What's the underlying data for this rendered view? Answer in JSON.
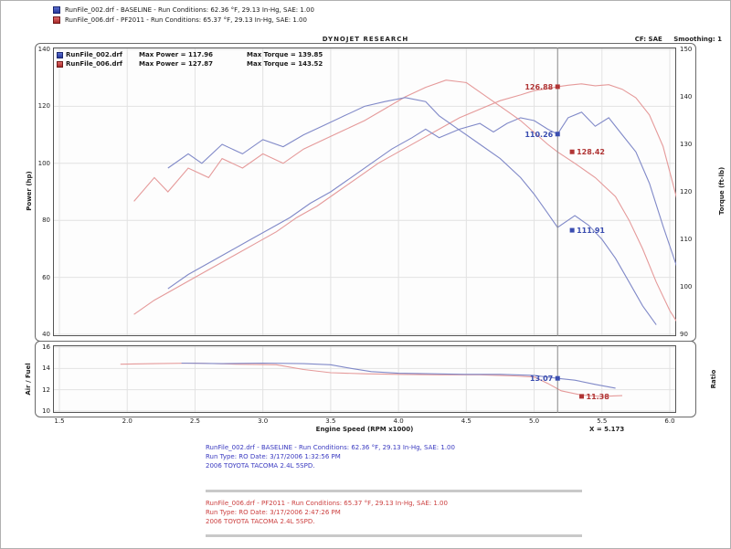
{
  "top_legend": [
    {
      "name": "baseline",
      "label": "RunFile_002.drf - BASELINE - Run Conditions: 62.36 °F, 29.13 In-Hg, SAE: 1.00"
    },
    {
      "name": "pf2011",
      "label": "RunFile_006.drf - PF2011 - Run Conditions: 65.37 °F, 29.13 In-Hg, SAE: 1.00"
    }
  ],
  "header": {
    "title": "DYNOJET RESEARCH",
    "correction": "CF: SAE",
    "smoothing": "Smoothing: 1"
  },
  "chart_legend": [
    {
      "file": "RunFile_002.drf",
      "max_power": "Max Power = 117.96",
      "max_torque": "Max Torque = 139.85"
    },
    {
      "file": "RunFile_006.drf",
      "max_power": "Max Power = 127.87",
      "max_torque": "Max Torque = 143.52"
    }
  ],
  "axis_titles": {
    "power": "Power (hp)",
    "torque": "Torque (ft-lb)",
    "airfuel": "Air / Fuel",
    "ratio": "Ratio",
    "x": "Engine Speed (RPM x1000)"
  },
  "cursor": {
    "readout": "X = 5.173"
  },
  "footer": {
    "runs": [
      {
        "lines": [
          "RunFile_002.drf - BASELINE - Run Conditions: 62.36 °F, 29.13 In-Hg, SAE: 1.00",
          "Run Type: RO  Date: 3/17/2006 1:32:56 PM",
          "2006 TOYOTA TACOMA 2.4L 5SPD."
        ]
      },
      {
        "lines": [
          "RunFile_006.drf - PF2011 - Run Conditions: 65.37 °F, 29.13 In-Hg, SAE: 1.00",
          "Run Type: RO  Date: 3/17/2006 2:47:26 PM",
          "2006 TOYOTA TACOMA 2.4L 5SPD."
        ]
      }
    ]
  },
  "colors": {
    "baseline_line": "#8089c8",
    "pf2011_line": "#e59a9a",
    "baseline_label": "#3a4db0",
    "pf2011_label": "#b03535",
    "grid": "#e2e2e2",
    "cursor_line": "#8a8a8a"
  },
  "chart_data": [
    {
      "id": "main",
      "type": "line",
      "title": "Power and Torque vs Engine Speed",
      "x": {
        "label": "Engine Speed (RPM x1000)",
        "min": 1.5,
        "max": 6.0,
        "ticks": [
          "1.5",
          "2.0",
          "2.5",
          "3.0",
          "3.5",
          "4.0",
          "4.5",
          "5.0",
          "5.5",
          "6.0"
        ]
      },
      "y_left": {
        "label": "Power (hp)",
        "min": 40,
        "max": 140,
        "ticks": [
          "140",
          "120",
          "100",
          "80",
          "60",
          "40"
        ]
      },
      "y_right": {
        "label": "Torque (ft-lb)",
        "min": 90,
        "max": 150,
        "ticks": [
          "150",
          "140",
          "130",
          "120",
          "110",
          "100",
          "90"
        ]
      },
      "grid_color": "#e2e2e2",
      "cursor_x": 5.173,
      "series": [
        {
          "name": "pf2011-power",
          "axis": "left",
          "color": "#e59a9a",
          "points": [
            [
              2.05,
              47
            ],
            [
              2.2,
              52
            ],
            [
              2.35,
              56
            ],
            [
              2.5,
              60
            ],
            [
              2.65,
              64
            ],
            [
              2.8,
              68
            ],
            [
              2.95,
              72
            ],
            [
              3.1,
              76
            ],
            [
              3.25,
              81
            ],
            [
              3.4,
              85
            ],
            [
              3.55,
              90
            ],
            [
              3.7,
              95
            ],
            [
              3.85,
              100
            ],
            [
              4.0,
              104
            ],
            [
              4.15,
              108
            ],
            [
              4.3,
              112
            ],
            [
              4.45,
              116
            ],
            [
              4.6,
              119
            ],
            [
              4.75,
              122
            ],
            [
              4.9,
              124
            ],
            [
              5.0,
              125.5
            ],
            [
              5.1,
              126.2
            ],
            [
              5.173,
              126.88
            ],
            [
              5.25,
              127.4
            ],
            [
              5.35,
              127.87
            ],
            [
              5.45,
              127.2
            ],
            [
              5.55,
              127.6
            ],
            [
              5.65,
              126
            ],
            [
              5.75,
              123
            ],
            [
              5.85,
              117
            ],
            [
              5.95,
              106
            ],
            [
              6.05,
              88
            ],
            [
              6.15,
              65
            ]
          ]
        },
        {
          "name": "baseline-power",
          "axis": "left",
          "color": "#8089c8",
          "points": [
            [
              2.3,
              56
            ],
            [
              2.45,
              61
            ],
            [
              2.6,
              65
            ],
            [
              2.75,
              69
            ],
            [
              2.9,
              73
            ],
            [
              3.05,
              77
            ],
            [
              3.2,
              81
            ],
            [
              3.35,
              86
            ],
            [
              3.5,
              90
            ],
            [
              3.65,
              95
            ],
            [
              3.8,
              100
            ],
            [
              3.95,
              105
            ],
            [
              4.1,
              109
            ],
            [
              4.2,
              112
            ],
            [
              4.3,
              109
            ],
            [
              4.45,
              112
            ],
            [
              4.6,
              114
            ],
            [
              4.7,
              111
            ],
            [
              4.8,
              114
            ],
            [
              4.9,
              116
            ],
            [
              5.0,
              115
            ],
            [
              5.1,
              112
            ],
            [
              5.173,
              110.26
            ],
            [
              5.25,
              116
            ],
            [
              5.35,
              117.96
            ],
            [
              5.45,
              113
            ],
            [
              5.55,
              116
            ],
            [
              5.65,
              110
            ],
            [
              5.75,
              104
            ],
            [
              5.85,
              93
            ],
            [
              5.95,
              78
            ],
            [
              6.05,
              64
            ]
          ]
        },
        {
          "name": "pf2011-torque",
          "axis": "right",
          "color": "#e59a9a",
          "points": [
            [
              2.05,
              118
            ],
            [
              2.2,
              123
            ],
            [
              2.3,
              120
            ],
            [
              2.45,
              125
            ],
            [
              2.6,
              123
            ],
            [
              2.7,
              127
            ],
            [
              2.85,
              125
            ],
            [
              3.0,
              128
            ],
            [
              3.15,
              126
            ],
            [
              3.3,
              129
            ],
            [
              3.45,
              131
            ],
            [
              3.6,
              133
            ],
            [
              3.75,
              135
            ],
            [
              3.9,
              137.5
            ],
            [
              4.05,
              140
            ],
            [
              4.2,
              142
            ],
            [
              4.35,
              143.52
            ],
            [
              4.5,
              143
            ],
            [
              4.6,
              141
            ],
            [
              4.7,
              139
            ],
            [
              4.8,
              137
            ],
            [
              4.9,
              135
            ],
            [
              5.0,
              132.5
            ],
            [
              5.1,
              130
            ],
            [
              5.173,
              128.4
            ],
            [
              5.3,
              126
            ],
            [
              5.45,
              123
            ],
            [
              5.6,
              119
            ],
            [
              5.7,
              114
            ],
            [
              5.8,
              108
            ],
            [
              5.9,
              101
            ],
            [
              6.0,
              95
            ],
            [
              6.1,
              90.5
            ]
          ]
        },
        {
          "name": "baseline-torque",
          "axis": "right",
          "color": "#8089c8",
          "points": [
            [
              2.3,
              125
            ],
            [
              2.45,
              128
            ],
            [
              2.55,
              126
            ],
            [
              2.7,
              130
            ],
            [
              2.85,
              128
            ],
            [
              3.0,
              131
            ],
            [
              3.15,
              129.5
            ],
            [
              3.3,
              132
            ],
            [
              3.45,
              134
            ],
            [
              3.6,
              136
            ],
            [
              3.75,
              138
            ],
            [
              3.9,
              139
            ],
            [
              4.05,
              139.85
            ],
            [
              4.2,
              139
            ],
            [
              4.3,
              136
            ],
            [
              4.45,
              133
            ],
            [
              4.6,
              130
            ],
            [
              4.75,
              127
            ],
            [
              4.9,
              123
            ],
            [
              5.0,
              119.5
            ],
            [
              5.1,
              115.5
            ],
            [
              5.173,
              112.5
            ],
            [
              5.3,
              115
            ],
            [
              5.4,
              113
            ],
            [
              5.5,
              110
            ],
            [
              5.6,
              106
            ],
            [
              5.7,
              101
            ],
            [
              5.8,
              96
            ],
            [
              5.9,
              92
            ]
          ]
        }
      ],
      "point_labels": [
        {
          "text": "126.88",
          "axis": "left",
          "x": 5.173,
          "side": "left",
          "color": "#b03535"
        },
        {
          "text": "110.26",
          "axis": "left",
          "x": 5.173,
          "side": "left",
          "color": "#3a4db0"
        },
        {
          "text": "128.42",
          "axis": "right",
          "x": 5.28,
          "side": "right",
          "color": "#b03535"
        },
        {
          "text": "111.91",
          "axis": "right",
          "x": 5.28,
          "side": "right",
          "color": "#3a4db0"
        }
      ]
    },
    {
      "id": "afr",
      "type": "line",
      "title": "Air/Fuel Ratio vs Engine Speed",
      "x": {
        "label": "Engine Speed (RPM x1000)",
        "min": 1.5,
        "max": 6.0,
        "ticks": [
          "1.5",
          "2.0",
          "2.5",
          "3.0",
          "3.5",
          "4.0",
          "4.5",
          "5.0",
          "5.5",
          "6.0"
        ]
      },
      "y_left": {
        "label": "Air / Fuel",
        "min": 10,
        "max": 16,
        "ticks": [
          "16",
          "14",
          "12",
          "10"
        ]
      },
      "grid_color": "#e2e2e2",
      "cursor_x": 5.173,
      "series": [
        {
          "name": "pf2011-afr",
          "axis": "left",
          "color": "#e59a9a",
          "points": [
            [
              1.95,
              14.4
            ],
            [
              2.2,
              14.45
            ],
            [
              2.5,
              14.5
            ],
            [
              2.8,
              14.4
            ],
            [
              3.1,
              14.35
            ],
            [
              3.3,
              13.9
            ],
            [
              3.5,
              13.6
            ],
            [
              3.75,
              13.5
            ],
            [
              4.0,
              13.45
            ],
            [
              4.3,
              13.4
            ],
            [
              4.6,
              13.4
            ],
            [
              4.85,
              13.3
            ],
            [
              5.0,
              13.2
            ],
            [
              5.1,
              12.6
            ],
            [
              5.2,
              11.9
            ],
            [
              5.35,
              11.5
            ],
            [
              5.5,
              11.38
            ],
            [
              5.65,
              11.45
            ]
          ]
        },
        {
          "name": "baseline-afr",
          "axis": "left",
          "color": "#8089c8",
          "points": [
            [
              2.4,
              14.5
            ],
            [
              2.7,
              14.45
            ],
            [
              3.0,
              14.5
            ],
            [
              3.3,
              14.45
            ],
            [
              3.5,
              14.35
            ],
            [
              3.65,
              14.0
            ],
            [
              3.8,
              13.7
            ],
            [
              4.0,
              13.55
            ],
            [
              4.25,
              13.5
            ],
            [
              4.5,
              13.45
            ],
            [
              4.75,
              13.45
            ],
            [
              5.0,
              13.35
            ],
            [
              5.173,
              13.07
            ],
            [
              5.3,
              12.9
            ],
            [
              5.45,
              12.5
            ],
            [
              5.6,
              12.15
            ]
          ]
        }
      ],
      "point_labels": [
        {
          "text": "13.07",
          "axis": "left",
          "x": 5.173,
          "side": "left",
          "color": "#3a4db0"
        },
        {
          "text": "11.38",
          "axis": "left",
          "x": 5.35,
          "side": "right",
          "color": "#b03535"
        }
      ]
    }
  ]
}
